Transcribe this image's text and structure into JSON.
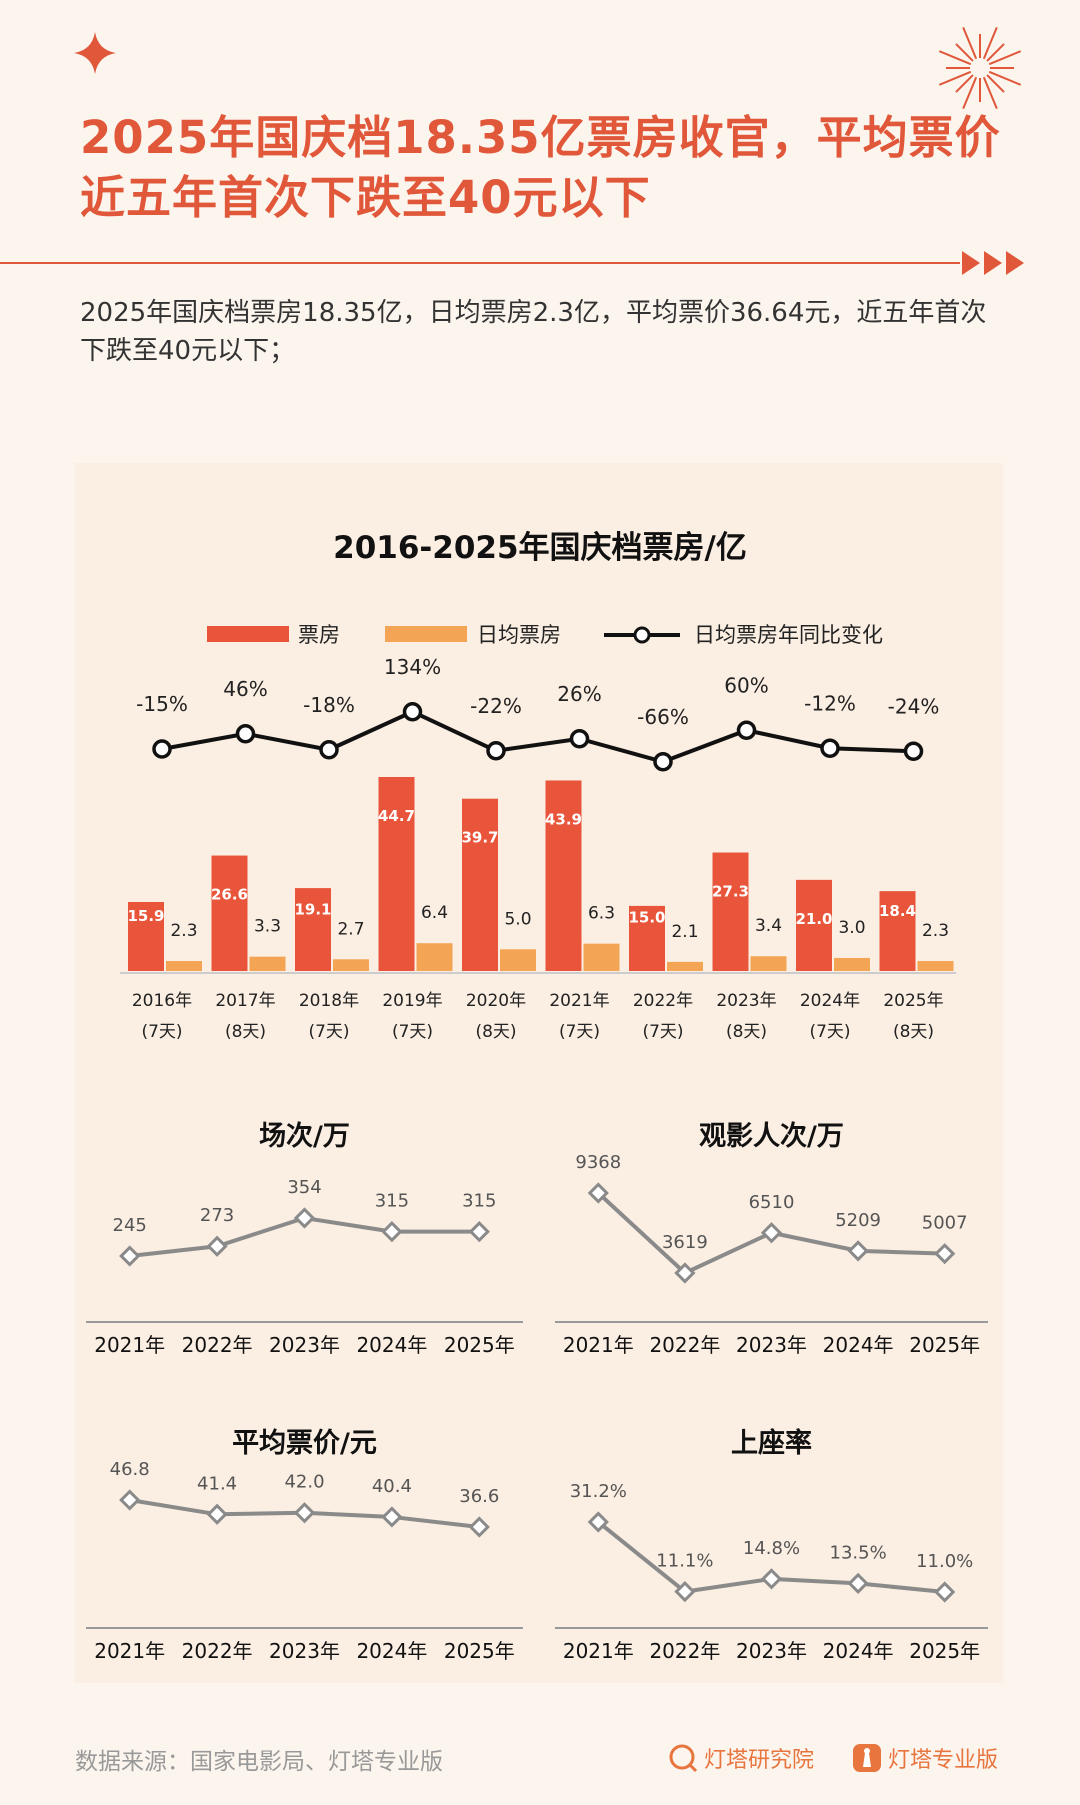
{
  "header": {
    "title": "2025年国庆档18.35亿票房收官，平均票价近五年首次下跌至40元以下",
    "subtitle": "2025年国庆档票房18.35亿，日均票房2.3亿，平均票价36.64元，近五年首次下跌至40元以下；"
  },
  "colors": {
    "accent": "#e0573a",
    "bar_total": "#e8553a",
    "bar_daily": "#f4a455",
    "line": "#111111",
    "small_line": "#8a8a8a",
    "background": "#fcf5ee",
    "card": "#fbeee2"
  },
  "chart_data": [
    {
      "type": "bar",
      "title": "2016-2025年国庆档票房/亿",
      "categories": [
        "2016年",
        "2017年",
        "2018年",
        "2019年",
        "2020年",
        "2021年",
        "2022年",
        "2023年",
        "2024年",
        "2025年"
      ],
      "category_sublabels": [
        "(7天)",
        "(8天)",
        "(7天)",
        "(7天)",
        "(8天)",
        "(7天)",
        "(7天)",
        "(8天)",
        "(7天)",
        "(8天)"
      ],
      "legend": [
        "票房",
        "日均票房",
        "日均票房年同比变化"
      ],
      "legend_placement": "top",
      "series": [
        {
          "name": "票房",
          "type": "bar",
          "values": [
            15.9,
            26.6,
            19.1,
            44.7,
            39.7,
            43.9,
            15.0,
            27.3,
            21.0,
            18.4
          ],
          "labels": [
            "15.9",
            "26.6",
            "19.1",
            "44.7",
            "39.7",
            "43.9",
            "15.0",
            "27.3",
            "21.0",
            "18.4"
          ]
        },
        {
          "name": "日均票房",
          "type": "bar",
          "values": [
            2.3,
            3.3,
            2.7,
            6.4,
            5.0,
            6.3,
            2.1,
            3.4,
            3.0,
            2.3
          ],
          "labels": [
            "2.3",
            "3.3",
            "2.7",
            "6.4",
            "5.0",
            "6.3",
            "2.1",
            "3.4",
            "3.0",
            "2.3"
          ]
        },
        {
          "name": "日均票房年同比变化",
          "type": "line",
          "values": [
            -15,
            46,
            -18,
            134,
            -22,
            26,
            -66,
            60,
            -12,
            -24
          ],
          "labels": [
            "-15%",
            "46%",
            "-18%",
            "134%",
            "-22%",
            "26%",
            "-66%",
            "60%",
            "-12%",
            "-24%"
          ]
        }
      ],
      "grid": false
    },
    {
      "type": "line",
      "title": "场次/万",
      "categories": [
        "2021年",
        "2022年",
        "2023年",
        "2024年",
        "2025年"
      ],
      "values": [
        245,
        273,
        354,
        315,
        315
      ],
      "labels": [
        "245",
        "273",
        "354",
        "315",
        "315"
      ]
    },
    {
      "type": "line",
      "title": "观影人次/万",
      "categories": [
        "2021年",
        "2022年",
        "2023年",
        "2024年",
        "2025年"
      ],
      "values": [
        9368,
        3619,
        6510,
        5209,
        5007
      ],
      "labels": [
        "9368",
        "3619",
        "6510",
        "5209",
        "5007"
      ]
    },
    {
      "type": "line",
      "title": "平均票价/元",
      "categories": [
        "2021年",
        "2022年",
        "2023年",
        "2024年",
        "2025年"
      ],
      "values": [
        46.8,
        41.4,
        42.0,
        40.4,
        36.6
      ],
      "labels": [
        "46.8",
        "41.4",
        "42.0",
        "40.4",
        "36.6"
      ]
    },
    {
      "type": "line",
      "title": "上座率",
      "categories": [
        "2021年",
        "2022年",
        "2023年",
        "2024年",
        "2025年"
      ],
      "values": [
        31.2,
        11.1,
        14.8,
        13.5,
        11.0
      ],
      "labels": [
        "31.2%",
        "11.1%",
        "14.8%",
        "13.5%",
        "11.0%"
      ]
    }
  ],
  "footer": {
    "source": "数据来源：国家电影局、灯塔专业版",
    "brands": [
      {
        "name": "灯塔研究院",
        "icon": "lighthouse-research-logo"
      },
      {
        "name": "灯塔专业版",
        "icon": "lighthouse-pro-logo"
      }
    ]
  }
}
